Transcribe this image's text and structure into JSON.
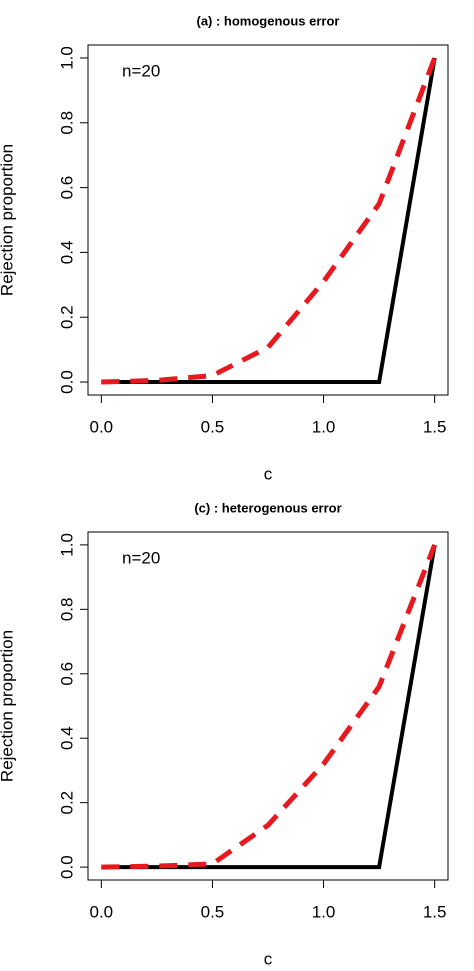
{
  "chart_data": [
    {
      "type": "line",
      "title": "(a) : homogenous error",
      "xlabel": "c",
      "ylabel": "Rejection proportion",
      "annotation": "n=20",
      "x": [
        0,
        0.25,
        0.5,
        0.75,
        1,
        1.25,
        1.5
      ],
      "series": [
        {
          "color": "#000000",
          "dashed": false,
          "values": [
            0,
            0,
            0,
            0,
            0,
            0,
            1
          ]
        },
        {
          "color": "#e8191e",
          "dashed": true,
          "values": [
            0,
            0.005,
            0.02,
            0.107,
            0.31,
            0.55,
            1
          ]
        }
      ],
      "xlim": [
        -0.06,
        1.56
      ],
      "ylim": [
        -0.04,
        1.04
      ],
      "xticks": [
        {
          "value": 0,
          "label": "0.0"
        },
        {
          "value": 0.5,
          "label": "0.5"
        },
        {
          "value": 1,
          "label": "1.0"
        },
        {
          "value": 1.5,
          "label": "1.5"
        }
      ],
      "yticks": [
        {
          "value": 0,
          "label": "0.0"
        },
        {
          "value": 0.2,
          "label": "0.2"
        },
        {
          "value": 0.4,
          "label": "0.4"
        },
        {
          "value": 0.6,
          "label": "0.6"
        },
        {
          "value": 0.8,
          "label": "0.8"
        },
        {
          "value": 1,
          "label": "1.0"
        }
      ]
    },
    {
      "type": "line",
      "title": "(c) : heterogenous error",
      "xlabel": "c",
      "ylabel": "Rejection proportion",
      "annotation": "n=20",
      "x": [
        0,
        0.25,
        0.5,
        0.75,
        1,
        1.25,
        1.5
      ],
      "series": [
        {
          "color": "#000000",
          "dashed": false,
          "values": [
            0,
            0,
            0,
            0,
            0,
            0,
            1
          ]
        },
        {
          "color": "#e8191e",
          "dashed": true,
          "values": [
            0,
            0.003,
            0.01,
            0.13,
            0.32,
            0.56,
            1
          ]
        }
      ],
      "xlim": [
        -0.06,
        1.56
      ],
      "ylim": [
        -0.04,
        1.04
      ],
      "xticks": [
        {
          "value": 0,
          "label": "0.0"
        },
        {
          "value": 0.5,
          "label": "0.5"
        },
        {
          "value": 1,
          "label": "1.0"
        },
        {
          "value": 1.5,
          "label": "1.5"
        }
      ],
      "yticks": [
        {
          "value": 0,
          "label": "0.0"
        },
        {
          "value": 0.2,
          "label": "0.2"
        },
        {
          "value": 0.4,
          "label": "0.4"
        },
        {
          "value": 0.6,
          "label": "0.6"
        },
        {
          "value": 0.8,
          "label": "0.8"
        },
        {
          "value": 1,
          "label": "1.0"
        }
      ]
    }
  ]
}
